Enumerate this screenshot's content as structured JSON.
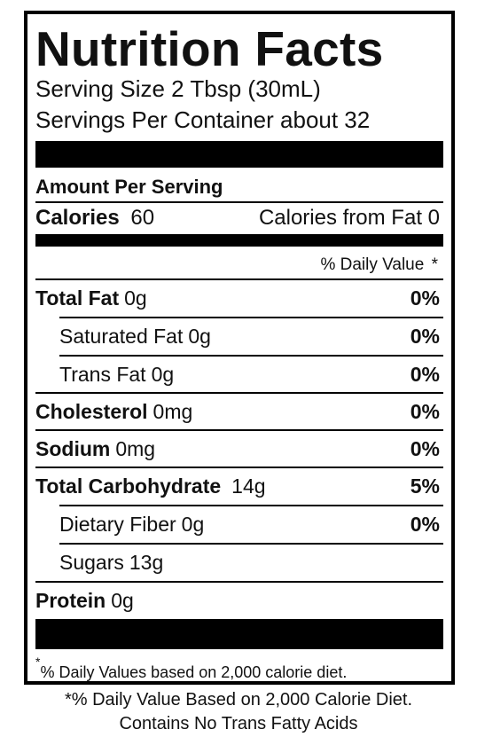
{
  "label": {
    "title": "Nutrition Facts",
    "serving_size": "Serving Size 2 Tbsp (30mL)",
    "servings_per_container": "Servings Per Container about 32",
    "amount_per_serving": "Amount Per Serving",
    "calories_label": "Calories",
    "calories_value": "60",
    "calories_from_fat": "Calories from Fat 0",
    "daily_value_header": "% Daily Value",
    "daily_value_asterisk": "*",
    "nutrients": [
      {
        "name": "Total Fat",
        "amount": "0g",
        "dv": "0%"
      },
      {
        "name": "Saturated Fat",
        "amount": "0g",
        "dv": "0%"
      },
      {
        "name": "Trans Fat",
        "amount": "0g",
        "dv": "0%"
      },
      {
        "name": "Cholesterol",
        "amount": "0mg",
        "dv": "0%"
      },
      {
        "name": "Sodium",
        "amount": "0mg",
        "dv": "0%"
      },
      {
        "name": "Total Carbohydrate",
        "amount": "14g",
        "dv": "5%"
      },
      {
        "name": "Dietary Fiber",
        "amount": "0g",
        "dv": "0%"
      },
      {
        "name": "Sugars",
        "amount": "13g",
        "dv": ""
      },
      {
        "name": "Protein",
        "amount": "0g",
        "dv": ""
      }
    ],
    "footnote_mark": "*",
    "footnote_text": "% Daily Values based on 2,000 calorie diet."
  },
  "below_label": {
    "line1": "*% Daily Value Based on 2,000 Calorie Diet.",
    "line2": "Contains No Trans Fatty Acids"
  }
}
